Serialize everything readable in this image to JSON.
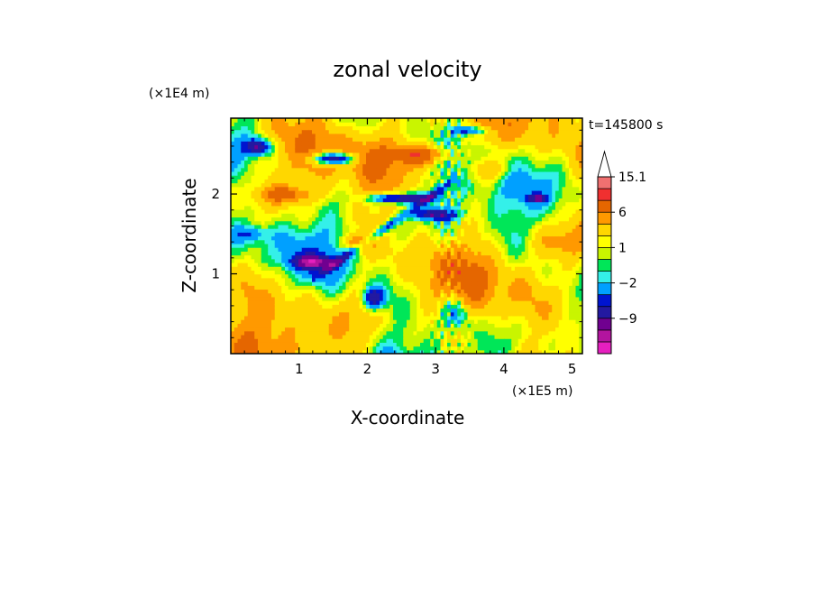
{
  "chart_data": {
    "type": "heatmap",
    "title": "zonal velocity",
    "xlabel": "X-coordinate",
    "ylabel": "Z-coordinate",
    "x_unit": "(×1E5 m)",
    "y_unit": "(×1E4 m)",
    "time_label": "t=145800 s",
    "xlim": [
      0,
      5.15
    ],
    "ylim": [
      0,
      2.95
    ],
    "x_ticks": [
      1,
      2,
      3,
      4,
      5
    ],
    "y_ticks": [
      1,
      2
    ],
    "colorbar": {
      "levels": [
        -15,
        -12,
        -9,
        -6,
        -4,
        -2,
        -1,
        0,
        1,
        2,
        4,
        6,
        9,
        12,
        15.1
      ],
      "labels": [
        "15.1",
        "6",
        "1",
        "−2",
        "−9"
      ],
      "colors": [
        "#e61fbf",
        "#b3149f",
        "#700090",
        "#2319a0",
        "#0014d0",
        "#00a0ff",
        "#34f0e9",
        "#00e658",
        "#c9f500",
        "#ffff00",
        "#ffd700",
        "#ff9900",
        "#e56600",
        "#f03030",
        "#f07070",
        "#f5b5b5"
      ],
      "extend": "max"
    },
    "features": [
      {
        "x": 0.4,
        "z": 2.6,
        "value": -10
      },
      {
        "x": 1.5,
        "z": 2.45,
        "value": -12
      },
      {
        "x": 1.2,
        "z": 1.15,
        "value": -11
      },
      {
        "x": 2.5,
        "z": 1.95,
        "value": -11
      },
      {
        "x": 2.8,
        "z": 2.5,
        "value": 7
      },
      {
        "x": 3.0,
        "z": 1.75,
        "value": -9
      },
      {
        "x": 2.1,
        "z": 0.7,
        "value": -10
      },
      {
        "x": 4.5,
        "z": 1.95,
        "value": -8
      },
      {
        "x": 0.8,
        "z": 2.0,
        "value": 5
      },
      {
        "x": 3.8,
        "z": 2.3,
        "value": 4
      },
      {
        "x": 3.5,
        "z": 2.8,
        "value": -7
      }
    ]
  }
}
